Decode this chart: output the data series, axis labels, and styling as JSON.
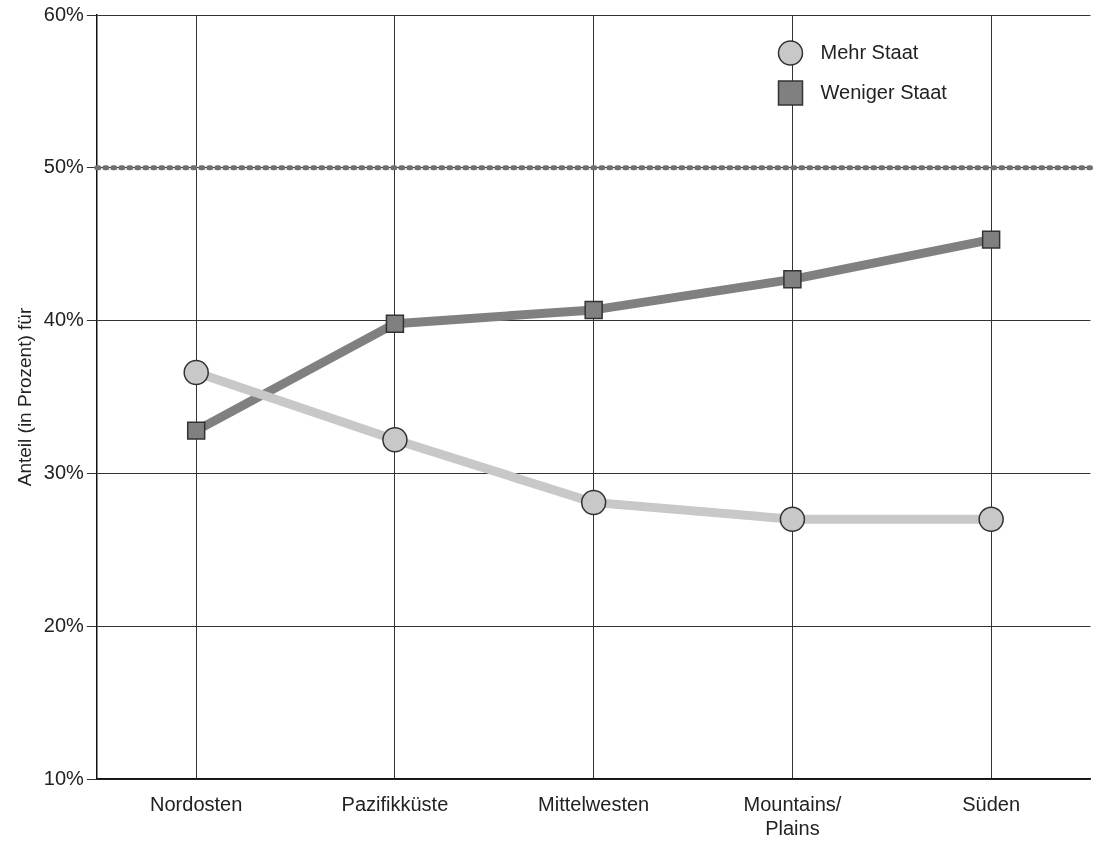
{
  "chart_data": {
    "type": "line",
    "ylabel": "Anteil (in Prozent) für",
    "categories": [
      "Nordosten",
      "Pazifikküste",
      "Mittelwesten",
      "Mountains/\nPlains",
      "Süden"
    ],
    "series": [
      {
        "name": "Mehr Staat",
        "color": "#c8c8c8",
        "marker": "circle",
        "values": [
          36.6,
          32.2,
          28.1,
          27.0,
          27.0
        ]
      },
      {
        "name": "Weniger Staat",
        "color": "#808080",
        "marker": "square",
        "values": [
          32.8,
          39.8,
          40.7,
          42.7,
          45.3
        ]
      }
    ],
    "ylim": [
      10,
      60
    ],
    "yticks": [
      {
        "value": 10,
        "label": "10%"
      },
      {
        "value": 20,
        "label": "20%"
      },
      {
        "value": 30,
        "label": "30%"
      },
      {
        "value": 40,
        "label": "40%"
      },
      {
        "value": 50,
        "label": "50%"
      },
      {
        "value": 60,
        "label": "60%"
      }
    ],
    "ref_lines": [
      {
        "axis": "y",
        "value": 50,
        "color": "#707070",
        "line_style": "dotted"
      }
    ],
    "grid": true,
    "legend": "top right"
  }
}
